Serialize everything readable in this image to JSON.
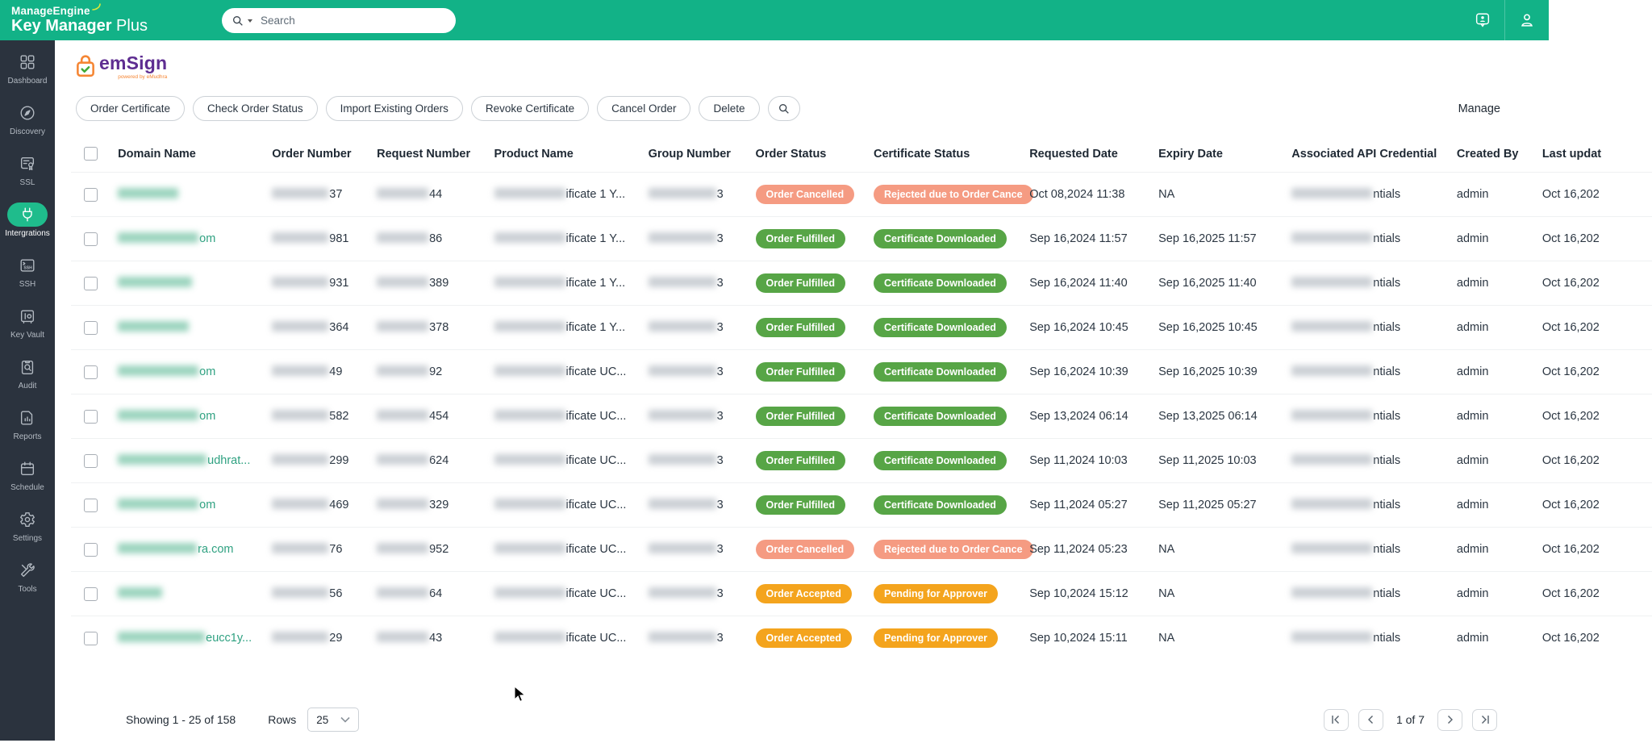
{
  "topbar": {
    "brand_line1": "ManageEngine",
    "brand_bold": "Key Manager",
    "brand_thin": " Plus",
    "search_placeholder": "Search"
  },
  "sidebar": {
    "items": [
      {
        "label": "Dashboard",
        "icon": "dashboard-grid-icon",
        "active": false
      },
      {
        "label": "Discovery",
        "icon": "compass-icon",
        "active": false
      },
      {
        "label": "SSL",
        "icon": "certificate-icon",
        "active": false
      },
      {
        "label": "Intergrations",
        "icon": "plug-icon",
        "active": true
      },
      {
        "label": "SSH",
        "icon": "ssh-terminal-icon",
        "active": false
      },
      {
        "label": "Key Vault",
        "icon": "vault-icon",
        "active": false
      },
      {
        "label": "Audit",
        "icon": "audit-search-icon",
        "active": false
      },
      {
        "label": "Reports",
        "icon": "report-chart-icon",
        "active": false
      },
      {
        "label": "Schedule",
        "icon": "calendar-icon",
        "active": false
      },
      {
        "label": "Settings",
        "icon": "gear-icon",
        "active": false
      },
      {
        "label": "Tools",
        "icon": "tools-icon",
        "active": false
      }
    ]
  },
  "page": {
    "logo_text": "emSign",
    "logo_tagline": "powered by eMudhra",
    "manage_label": "Manage"
  },
  "toolbar": {
    "buttons": [
      "Order Certificate",
      "Check Order Status",
      "Import Existing Orders",
      "Revoke Certificate",
      "Cancel Order",
      "Delete"
    ]
  },
  "table": {
    "headers": [
      "Domain Name",
      "Order Number",
      "Request Number",
      "Product Name",
      "Group Number",
      "Order Status",
      "Certificate Status",
      "Requested Date",
      "Expiry Date",
      "Associated API Credential",
      "Created By",
      "Last updat"
    ],
    "rows": [
      {
        "domain_blur": 75,
        "domain_tail": "",
        "order_tail": "37",
        "request_tail": "44",
        "product_tail": "ificate 1 Y...",
        "group_tail": "3",
        "order_status": {
          "label": "Order Cancelled",
          "type": "salmon"
        },
        "cert_status": {
          "label": "Rejected due to Order Cance",
          "type": "salmon"
        },
        "requested": "Oct 08,2024 11:38",
        "expiry": "NA",
        "cred_tail": "ntials",
        "created_by": "admin",
        "last_updated": "Oct 16,202"
      },
      {
        "domain_blur": 100,
        "domain_tail": "om",
        "order_tail": "981",
        "request_tail": "86",
        "product_tail": "ificate 1 Y...",
        "group_tail": "3",
        "order_status": {
          "label": "Order Fulfilled",
          "type": "green"
        },
        "cert_status": {
          "label": "Certificate Downloaded",
          "type": "green"
        },
        "requested": "Sep 16,2024 11:57",
        "expiry": "Sep 16,2025 11:57",
        "cred_tail": "ntials",
        "created_by": "admin",
        "last_updated": "Oct 16,202"
      },
      {
        "domain_blur": 92,
        "domain_tail": "",
        "order_tail": "931",
        "request_tail": "389",
        "product_tail": "ificate 1 Y...",
        "group_tail": "3",
        "order_status": {
          "label": "Order Fulfilled",
          "type": "green"
        },
        "cert_status": {
          "label": "Certificate Downloaded",
          "type": "green"
        },
        "requested": "Sep 16,2024 11:40",
        "expiry": "Sep 16,2025 11:40",
        "cred_tail": "ntials",
        "created_by": "admin",
        "last_updated": "Oct 16,202"
      },
      {
        "domain_blur": 88,
        "domain_tail": "",
        "order_tail": "364",
        "request_tail": "378",
        "product_tail": "ificate 1 Y...",
        "group_tail": "3",
        "order_status": {
          "label": "Order Fulfilled",
          "type": "green"
        },
        "cert_status": {
          "label": "Certificate Downloaded",
          "type": "green"
        },
        "requested": "Sep 16,2024 10:45",
        "expiry": "Sep 16,2025 10:45",
        "cred_tail": "ntials",
        "created_by": "admin",
        "last_updated": "Oct 16,202"
      },
      {
        "domain_blur": 100,
        "domain_tail": "om",
        "order_tail": "49",
        "request_tail": "92",
        "product_tail": "ificate UC...",
        "group_tail": "3",
        "order_status": {
          "label": "Order Fulfilled",
          "type": "green"
        },
        "cert_status": {
          "label": "Certificate Downloaded",
          "type": "green"
        },
        "requested": "Sep 16,2024 10:39",
        "expiry": "Sep 16,2025 10:39",
        "cred_tail": "ntials",
        "created_by": "admin",
        "last_updated": "Oct 16,202"
      },
      {
        "domain_blur": 100,
        "domain_tail": "om",
        "order_tail": "582",
        "request_tail": "454",
        "product_tail": "ificate UC...",
        "group_tail": "3",
        "order_status": {
          "label": "Order Fulfilled",
          "type": "green"
        },
        "cert_status": {
          "label": "Certificate Downloaded",
          "type": "green"
        },
        "requested": "Sep 13,2024 06:14",
        "expiry": "Sep 13,2025 06:14",
        "cred_tail": "ntials",
        "created_by": "admin",
        "last_updated": "Oct 16,202"
      },
      {
        "domain_blur": 110,
        "domain_tail": "udhrat...",
        "order_tail": "299",
        "request_tail": "624",
        "product_tail": "ificate UC...",
        "group_tail": "3",
        "order_status": {
          "label": "Order Fulfilled",
          "type": "green"
        },
        "cert_status": {
          "label": "Certificate Downloaded",
          "type": "green"
        },
        "requested": "Sep 11,2024 10:03",
        "expiry": "Sep 11,2025 10:03",
        "cred_tail": "ntials",
        "created_by": "admin",
        "last_updated": "Oct 16,202"
      },
      {
        "domain_blur": 100,
        "domain_tail": "om",
        "order_tail": "469",
        "request_tail": "329",
        "product_tail": "ificate UC...",
        "group_tail": "3",
        "order_status": {
          "label": "Order Fulfilled",
          "type": "green"
        },
        "cert_status": {
          "label": "Certificate Downloaded",
          "type": "green"
        },
        "requested": "Sep 11,2024 05:27",
        "expiry": "Sep 11,2025 05:27",
        "cred_tail": "ntials",
        "created_by": "admin",
        "last_updated": "Oct 16,202"
      },
      {
        "domain_blur": 98,
        "domain_tail": "ra.com",
        "order_tail": "76",
        "request_tail": "952",
        "product_tail": "ificate UC...",
        "group_tail": "3",
        "order_status": {
          "label": "Order Cancelled",
          "type": "salmon"
        },
        "cert_status": {
          "label": "Rejected due to Order Cance",
          "type": "salmon"
        },
        "requested": "Sep 11,2024 05:23",
        "expiry": "NA",
        "cred_tail": "ntials",
        "created_by": "admin",
        "last_updated": "Oct 16,202"
      },
      {
        "domain_blur": 55,
        "domain_tail": "",
        "order_tail": "56",
        "request_tail": "64",
        "product_tail": "ificate UC...",
        "group_tail": "3",
        "order_status": {
          "label": "Order Accepted",
          "type": "amber"
        },
        "cert_status": {
          "label": "Pending for Approver",
          "type": "amber"
        },
        "requested": "Sep 10,2024 15:12",
        "expiry": "NA",
        "cred_tail": "ntials",
        "created_by": "admin",
        "last_updated": "Oct 16,202"
      },
      {
        "domain_blur": 108,
        "domain_tail": "eucc1y...",
        "order_tail": "29",
        "request_tail": "43",
        "product_tail": "ificate UC...",
        "group_tail": "3",
        "order_status": {
          "label": "Order Accepted",
          "type": "amber"
        },
        "cert_status": {
          "label": "Pending for Approver",
          "type": "amber"
        },
        "requested": "Sep 10,2024 15:11",
        "expiry": "NA",
        "cred_tail": "ntials",
        "created_by": "admin",
        "last_updated": "Oct 16,202"
      }
    ]
  },
  "footer": {
    "showing": "Showing 1 - 25 of 158",
    "rows_label": "Rows",
    "rows_value": "25",
    "page_label": "1 of 7"
  },
  "colors": {
    "topbar_green": "#12b287",
    "sidebar_dark": "#2b333e",
    "active_pill_green": "#1fbc8c",
    "domain_link_green": "#2fa181",
    "badge_salmon": "#f59b82",
    "badge_green": "#57a546",
    "badge_amber": "#f4a41d",
    "emsign_purple": "#5e2d91",
    "emsign_orange": "#f58634"
  }
}
